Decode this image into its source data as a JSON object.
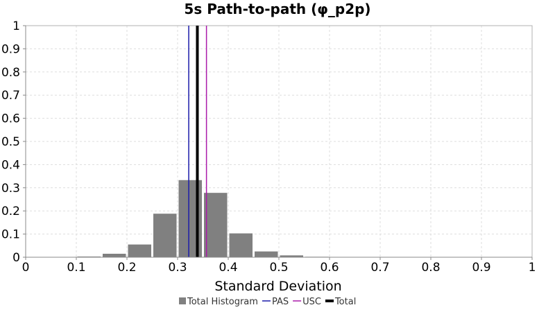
{
  "chart_data": {
    "type": "bar",
    "title": "5s Path-to-path (φ_p2p)",
    "xlabel": "Standard Deviation",
    "ylabel": "",
    "xlim": [
      0,
      1
    ],
    "ylim": [
      0,
      1
    ],
    "x_ticks": [
      "0",
      "0.1",
      "0.2",
      "0.3",
      "0.4",
      "0.5",
      "0.6",
      "0.7",
      "0.8",
      "0.9",
      "1"
    ],
    "y_ticks": [
      "0",
      "0.1",
      "0.2",
      "0.3",
      "0.4",
      "0.5",
      "0.6",
      "0.7",
      "0.8",
      "0.9",
      "1"
    ],
    "grid": true,
    "legend_position": "bottom",
    "histogram": {
      "name": "Total Histogram",
      "color": "#808080",
      "bin_width": 0.05,
      "bins": [
        {
          "start": 0.1,
          "value": 0.003
        },
        {
          "start": 0.15,
          "value": 0.015
        },
        {
          "start": 0.2,
          "value": 0.055
        },
        {
          "start": 0.25,
          "value": 0.188
        },
        {
          "start": 0.3,
          "value": 0.333
        },
        {
          "start": 0.35,
          "value": 0.278
        },
        {
          "start": 0.4,
          "value": 0.103
        },
        {
          "start": 0.45,
          "value": 0.025
        },
        {
          "start": 0.5,
          "value": 0.008
        },
        {
          "start": 0.55,
          "value": 0.002
        }
      ]
    },
    "lines": [
      {
        "name": "PAS",
        "x": 0.322,
        "color": "#1a1aaa",
        "weight": "thin"
      },
      {
        "name": "USC",
        "x": 0.357,
        "color": "#aa1aaa",
        "weight": "thin"
      },
      {
        "name": "Total",
        "x": 0.339,
        "color": "#000000",
        "weight": "thick"
      }
    ],
    "legend": [
      "Total Histogram",
      "PAS",
      "USC",
      "Total"
    ]
  }
}
